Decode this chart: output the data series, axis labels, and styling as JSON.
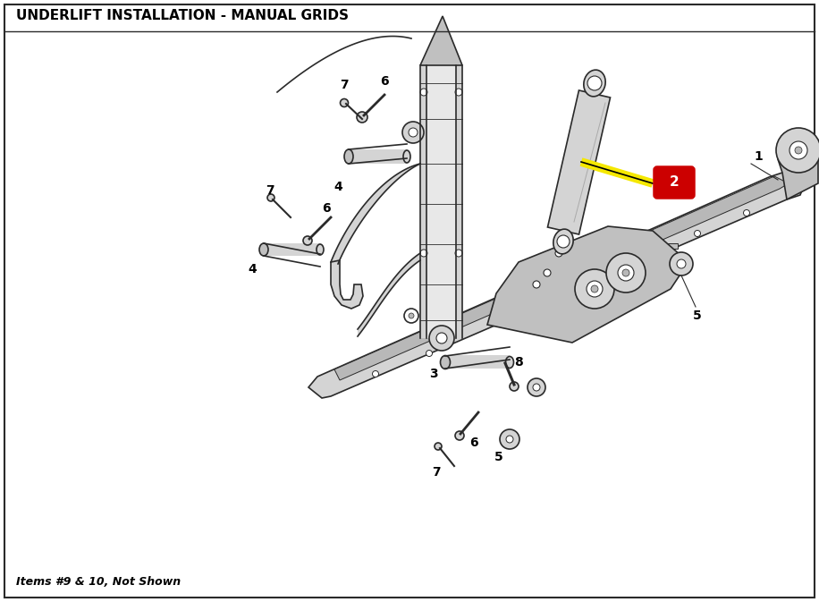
{
  "title": "UNDERLIFT INSTALLATION - MANUAL GRIDS",
  "footer": "Items #9 & 10, Not Shown",
  "background_color": "#ffffff",
  "border_color": "#000000",
  "line_color": "#2a2a2a",
  "label_color": "#000000",
  "highlight_line_color": "#f5e800",
  "highlight_box_color": "#cc0000",
  "highlight_box_fill": "#cc0000",
  "highlight_label": "2",
  "title_fontsize": 11,
  "label_fontsize": 10,
  "footer_fontsize": 9,
  "fig_width": 9.16,
  "fig_height": 6.73,
  "dpi": 100
}
